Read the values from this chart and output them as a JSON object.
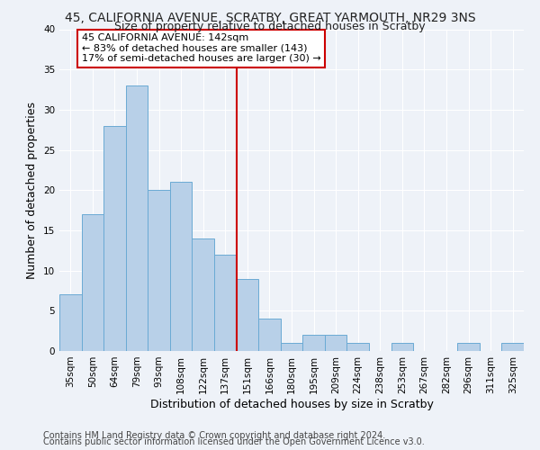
{
  "title": "45, CALIFORNIA AVENUE, SCRATBY, GREAT YARMOUTH, NR29 3NS",
  "subtitle": "Size of property relative to detached houses in Scratby",
  "xlabel": "Distribution of detached houses by size in Scratby",
  "ylabel": "Number of detached properties",
  "bar_labels": [
    "35sqm",
    "50sqm",
    "64sqm",
    "79sqm",
    "93sqm",
    "108sqm",
    "122sqm",
    "137sqm",
    "151sqm",
    "166sqm",
    "180sqm",
    "195sqm",
    "209sqm",
    "224sqm",
    "238sqm",
    "253sqm",
    "267sqm",
    "282sqm",
    "296sqm",
    "311sqm",
    "325sqm"
  ],
  "bar_values": [
    7,
    17,
    28,
    33,
    20,
    21,
    14,
    12,
    9,
    4,
    1,
    2,
    2,
    1,
    0,
    1,
    0,
    0,
    1,
    0,
    1
  ],
  "bar_color": "#b8d0e8",
  "bar_edge_color": "#6aaad4",
  "vline_x": 7.5,
  "vline_color": "#cc0000",
  "annotation_line1": "45 CALIFORNIA AVENUE: 142sqm",
  "annotation_line2": "← 83% of detached houses are smaller (143)",
  "annotation_line3": "17% of semi-detached houses are larger (30) →",
  "annotation_box_color": "#ffffff",
  "annotation_box_edge": "#cc0000",
  "ylim": [
    0,
    40
  ],
  "yticks": [
    0,
    5,
    10,
    15,
    20,
    25,
    30,
    35,
    40
  ],
  "footer_line1": "Contains HM Land Registry data © Crown copyright and database right 2024.",
  "footer_line2": "Contains public sector information licensed under the Open Government Licence v3.0.",
  "background_color": "#eef2f8",
  "grid_color": "#ffffff",
  "title_fontsize": 10,
  "subtitle_fontsize": 9,
  "axis_label_fontsize": 9,
  "tick_fontsize": 7.5,
  "annotation_fontsize": 8,
  "footer_fontsize": 7
}
